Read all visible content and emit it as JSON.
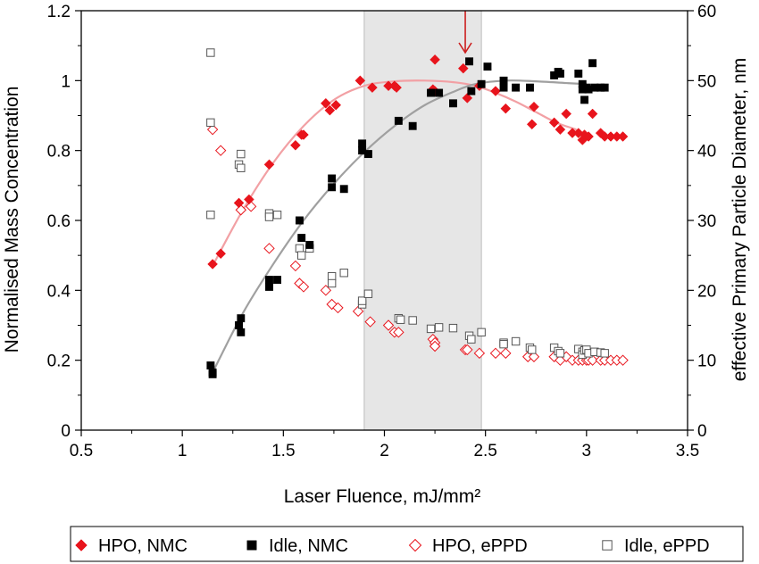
{
  "chart_data": {
    "type": "scatter",
    "xlabel": "Laser Fluence, mJ/mm²",
    "ylabel": "Normalised Mass Concentration",
    "y2label": "effective Primary Particle Diameter, nm",
    "xlim": [
      0.5,
      3.5
    ],
    "ylim": [
      0,
      1.2
    ],
    "y2lim": [
      0,
      60
    ],
    "x_ticks": [
      "0.5",
      "1",
      "1.5",
      "2",
      "2.5",
      "3",
      "3.5"
    ],
    "y_ticks": [
      "0",
      "0.2",
      "0.4",
      "0.6",
      "0.8",
      "1",
      "1.2"
    ],
    "y2_ticks": [
      "0",
      "10",
      "20",
      "30",
      "40",
      "50",
      "60"
    ],
    "grid": false,
    "legend_position": "bottom",
    "shaded_region": {
      "x": [
        1.9,
        2.48
      ],
      "color": "#e6e6e6"
    },
    "arrow_annotation": {
      "x": 2.4,
      "y_from": 1.2,
      "y_to": 1.08,
      "color": "#cc1f1f"
    },
    "series": [
      {
        "name": "HPO, NMC",
        "axis": "left",
        "marker": "diamond-filled",
        "color": "#e8141c",
        "points": [
          [
            1.15,
            0.475
          ],
          [
            1.19,
            0.505
          ],
          [
            1.28,
            0.65
          ],
          [
            1.33,
            0.66
          ],
          [
            1.43,
            0.76
          ],
          [
            1.56,
            0.815
          ],
          [
            1.59,
            0.845
          ],
          [
            1.6,
            0.845
          ],
          [
            1.71,
            0.935
          ],
          [
            1.73,
            0.915
          ],
          [
            1.76,
            0.93
          ],
          [
            1.88,
            1.0
          ],
          [
            1.94,
            0.98
          ],
          [
            2.02,
            0.985
          ],
          [
            2.05,
            0.985
          ],
          [
            2.06,
            0.98
          ],
          [
            2.24,
            0.975
          ],
          [
            2.25,
            1.06
          ],
          [
            2.25,
            0.97
          ],
          [
            2.39,
            1.035
          ],
          [
            2.41,
            0.95
          ],
          [
            2.47,
            0.985
          ],
          [
            2.55,
            0.97
          ],
          [
            2.6,
            0.92
          ],
          [
            2.73,
            0.875
          ],
          [
            2.74,
            0.925
          ],
          [
            2.84,
            0.88
          ],
          [
            2.87,
            0.86
          ],
          [
            2.9,
            0.905
          ],
          [
            2.93,
            0.85
          ],
          [
            2.96,
            0.85
          ],
          [
            2.98,
            0.83
          ],
          [
            2.99,
            0.845
          ],
          [
            3.01,
            0.84
          ],
          [
            3.03,
            0.905
          ],
          [
            3.07,
            0.85
          ],
          [
            3.09,
            0.84
          ],
          [
            3.12,
            0.84
          ],
          [
            3.15,
            0.84
          ],
          [
            3.18,
            0.84
          ]
        ]
      },
      {
        "name": "Idle, NMC",
        "axis": "left",
        "marker": "square-filled",
        "color": "#000000",
        "points": [
          [
            1.14,
            0.185
          ],
          [
            1.15,
            0.165
          ],
          [
            1.15,
            0.16
          ],
          [
            1.28,
            0.3
          ],
          [
            1.29,
            0.32
          ],
          [
            1.29,
            0.28
          ],
          [
            1.43,
            0.41
          ],
          [
            1.43,
            0.43
          ],
          [
            1.47,
            0.43
          ],
          [
            1.58,
            0.6
          ],
          [
            1.59,
            0.55
          ],
          [
            1.63,
            0.53
          ],
          [
            1.74,
            0.695
          ],
          [
            1.74,
            0.72
          ],
          [
            1.8,
            0.69
          ],
          [
            1.89,
            0.8
          ],
          [
            1.89,
            0.82
          ],
          [
            1.92,
            0.79
          ],
          [
            2.07,
            0.885
          ],
          [
            2.14,
            0.87
          ],
          [
            2.23,
            0.965
          ],
          [
            2.27,
            0.965
          ],
          [
            2.34,
            0.935
          ],
          [
            2.42,
            1.055
          ],
          [
            2.43,
            0.97
          ],
          [
            2.48,
            0.99
          ],
          [
            2.51,
            1.04
          ],
          [
            2.59,
            1.0
          ],
          [
            2.59,
            0.98
          ],
          [
            2.65,
            0.98
          ],
          [
            2.72,
            0.98
          ],
          [
            2.84,
            1.015
          ],
          [
            2.86,
            1.025
          ],
          [
            2.87,
            1.02
          ],
          [
            2.96,
            1.02
          ],
          [
            2.98,
            0.99
          ],
          [
            2.98,
            0.975
          ],
          [
            2.99,
            0.945
          ],
          [
            3.0,
            0.98
          ],
          [
            3.01,
            0.975
          ],
          [
            3.03,
            1.05
          ],
          [
            3.04,
            0.98
          ],
          [
            3.07,
            0.98
          ],
          [
            3.09,
            0.98
          ]
        ]
      },
      {
        "name": "HPO, ePPD",
        "axis": "right",
        "marker": "diamond-open",
        "color": "#e8141c",
        "points": [
          [
            1.15,
            43.0
          ],
          [
            1.19,
            40.0
          ],
          [
            1.29,
            31.5
          ],
          [
            1.34,
            32.0
          ],
          [
            1.43,
            26.0
          ],
          [
            1.56,
            23.5
          ],
          [
            1.58,
            21.0
          ],
          [
            1.6,
            20.5
          ],
          [
            1.71,
            20.0
          ],
          [
            1.74,
            18.0
          ],
          [
            1.77,
            17.5
          ],
          [
            1.87,
            17.0
          ],
          [
            1.93,
            15.5
          ],
          [
            2.02,
            15.0
          ],
          [
            2.05,
            14.0
          ],
          [
            2.07,
            14.0
          ],
          [
            2.24,
            13.0
          ],
          [
            2.25,
            12.5
          ],
          [
            2.25,
            12.0
          ],
          [
            2.4,
            11.5
          ],
          [
            2.41,
            11.5
          ],
          [
            2.47,
            11.0
          ],
          [
            2.55,
            11.0
          ],
          [
            2.6,
            11.0
          ],
          [
            2.71,
            10.5
          ],
          [
            2.74,
            10.5
          ],
          [
            2.84,
            10.5
          ],
          [
            2.87,
            10.0
          ],
          [
            2.9,
            10.5
          ],
          [
            2.93,
            10.0
          ],
          [
            2.96,
            10.0
          ],
          [
            2.98,
            10.0
          ],
          [
            3.0,
            10.0
          ],
          [
            3.01,
            10.0
          ],
          [
            3.03,
            10.0
          ],
          [
            3.07,
            10.0
          ],
          [
            3.09,
            10.0
          ],
          [
            3.12,
            10.0
          ],
          [
            3.15,
            10.0
          ],
          [
            3.18,
            10.0
          ]
        ]
      },
      {
        "name": "Idle, ePPD",
        "axis": "right",
        "marker": "square-open",
        "color": "#555555",
        "points": [
          [
            1.14,
            54.0
          ],
          [
            1.14,
            44.0
          ],
          [
            1.14,
            30.8
          ],
          [
            1.28,
            38.0
          ],
          [
            1.29,
            39.5
          ],
          [
            1.29,
            37.5
          ],
          [
            1.43,
            31.0
          ],
          [
            1.43,
            30.5
          ],
          [
            1.47,
            30.8
          ],
          [
            1.58,
            26.0
          ],
          [
            1.59,
            25.0
          ],
          [
            1.63,
            26.0
          ],
          [
            1.74,
            22.0
          ],
          [
            1.74,
            21.0
          ],
          [
            1.8,
            22.5
          ],
          [
            1.89,
            18.0
          ],
          [
            1.89,
            18.5
          ],
          [
            1.92,
            19.5
          ],
          [
            2.07,
            16.0
          ],
          [
            2.08,
            15.8
          ],
          [
            2.14,
            15.7
          ],
          [
            2.23,
            14.5
          ],
          [
            2.27,
            14.7
          ],
          [
            2.34,
            14.6
          ],
          [
            2.42,
            13.5
          ],
          [
            2.43,
            13.0
          ],
          [
            2.48,
            14.0
          ],
          [
            2.59,
            12.5
          ],
          [
            2.59,
            12.3
          ],
          [
            2.65,
            12.7
          ],
          [
            2.72,
            11.8
          ],
          [
            2.73,
            11.5
          ],
          [
            2.84,
            11.8
          ],
          [
            2.86,
            11.3
          ],
          [
            2.87,
            11.0
          ],
          [
            2.96,
            11.6
          ],
          [
            2.98,
            11.2
          ],
          [
            2.98,
            10.8
          ],
          [
            2.99,
            11.4
          ],
          [
            3.0,
            11.5
          ],
          [
            3.01,
            11.0
          ],
          [
            3.04,
            11.2
          ],
          [
            3.07,
            11.1
          ],
          [
            3.09,
            11.0
          ]
        ]
      }
    ],
    "fit_curves": [
      {
        "series": "HPO, NMC",
        "axis": "left",
        "color": "#f2a0a4",
        "points": [
          [
            1.15,
            0.47
          ],
          [
            1.3,
            0.63
          ],
          [
            1.45,
            0.765
          ],
          [
            1.6,
            0.87
          ],
          [
            1.75,
            0.945
          ],
          [
            1.9,
            0.985
          ],
          [
            2.05,
            0.998
          ],
          [
            2.2,
            1.0
          ],
          [
            2.35,
            0.995
          ],
          [
            2.45,
            0.985
          ],
          [
            2.55,
            0.965
          ],
          [
            2.65,
            0.94
          ],
          [
            2.75,
            0.91
          ],
          [
            2.85,
            0.88
          ],
          [
            2.95,
            0.86
          ]
        ]
      },
      {
        "series": "Idle, NMC",
        "axis": "left",
        "color": "#a0a0a0",
        "points": [
          [
            1.15,
            0.165
          ],
          [
            1.3,
            0.335
          ],
          [
            1.45,
            0.475
          ],
          [
            1.6,
            0.6
          ],
          [
            1.75,
            0.705
          ],
          [
            1.9,
            0.795
          ],
          [
            2.05,
            0.87
          ],
          [
            2.2,
            0.93
          ],
          [
            2.35,
            0.97
          ],
          [
            2.45,
            0.99
          ],
          [
            2.6,
            1.0
          ],
          [
            2.75,
            0.998
          ],
          [
            2.9,
            0.993
          ],
          [
            3.0,
            0.99
          ]
        ]
      }
    ]
  }
}
